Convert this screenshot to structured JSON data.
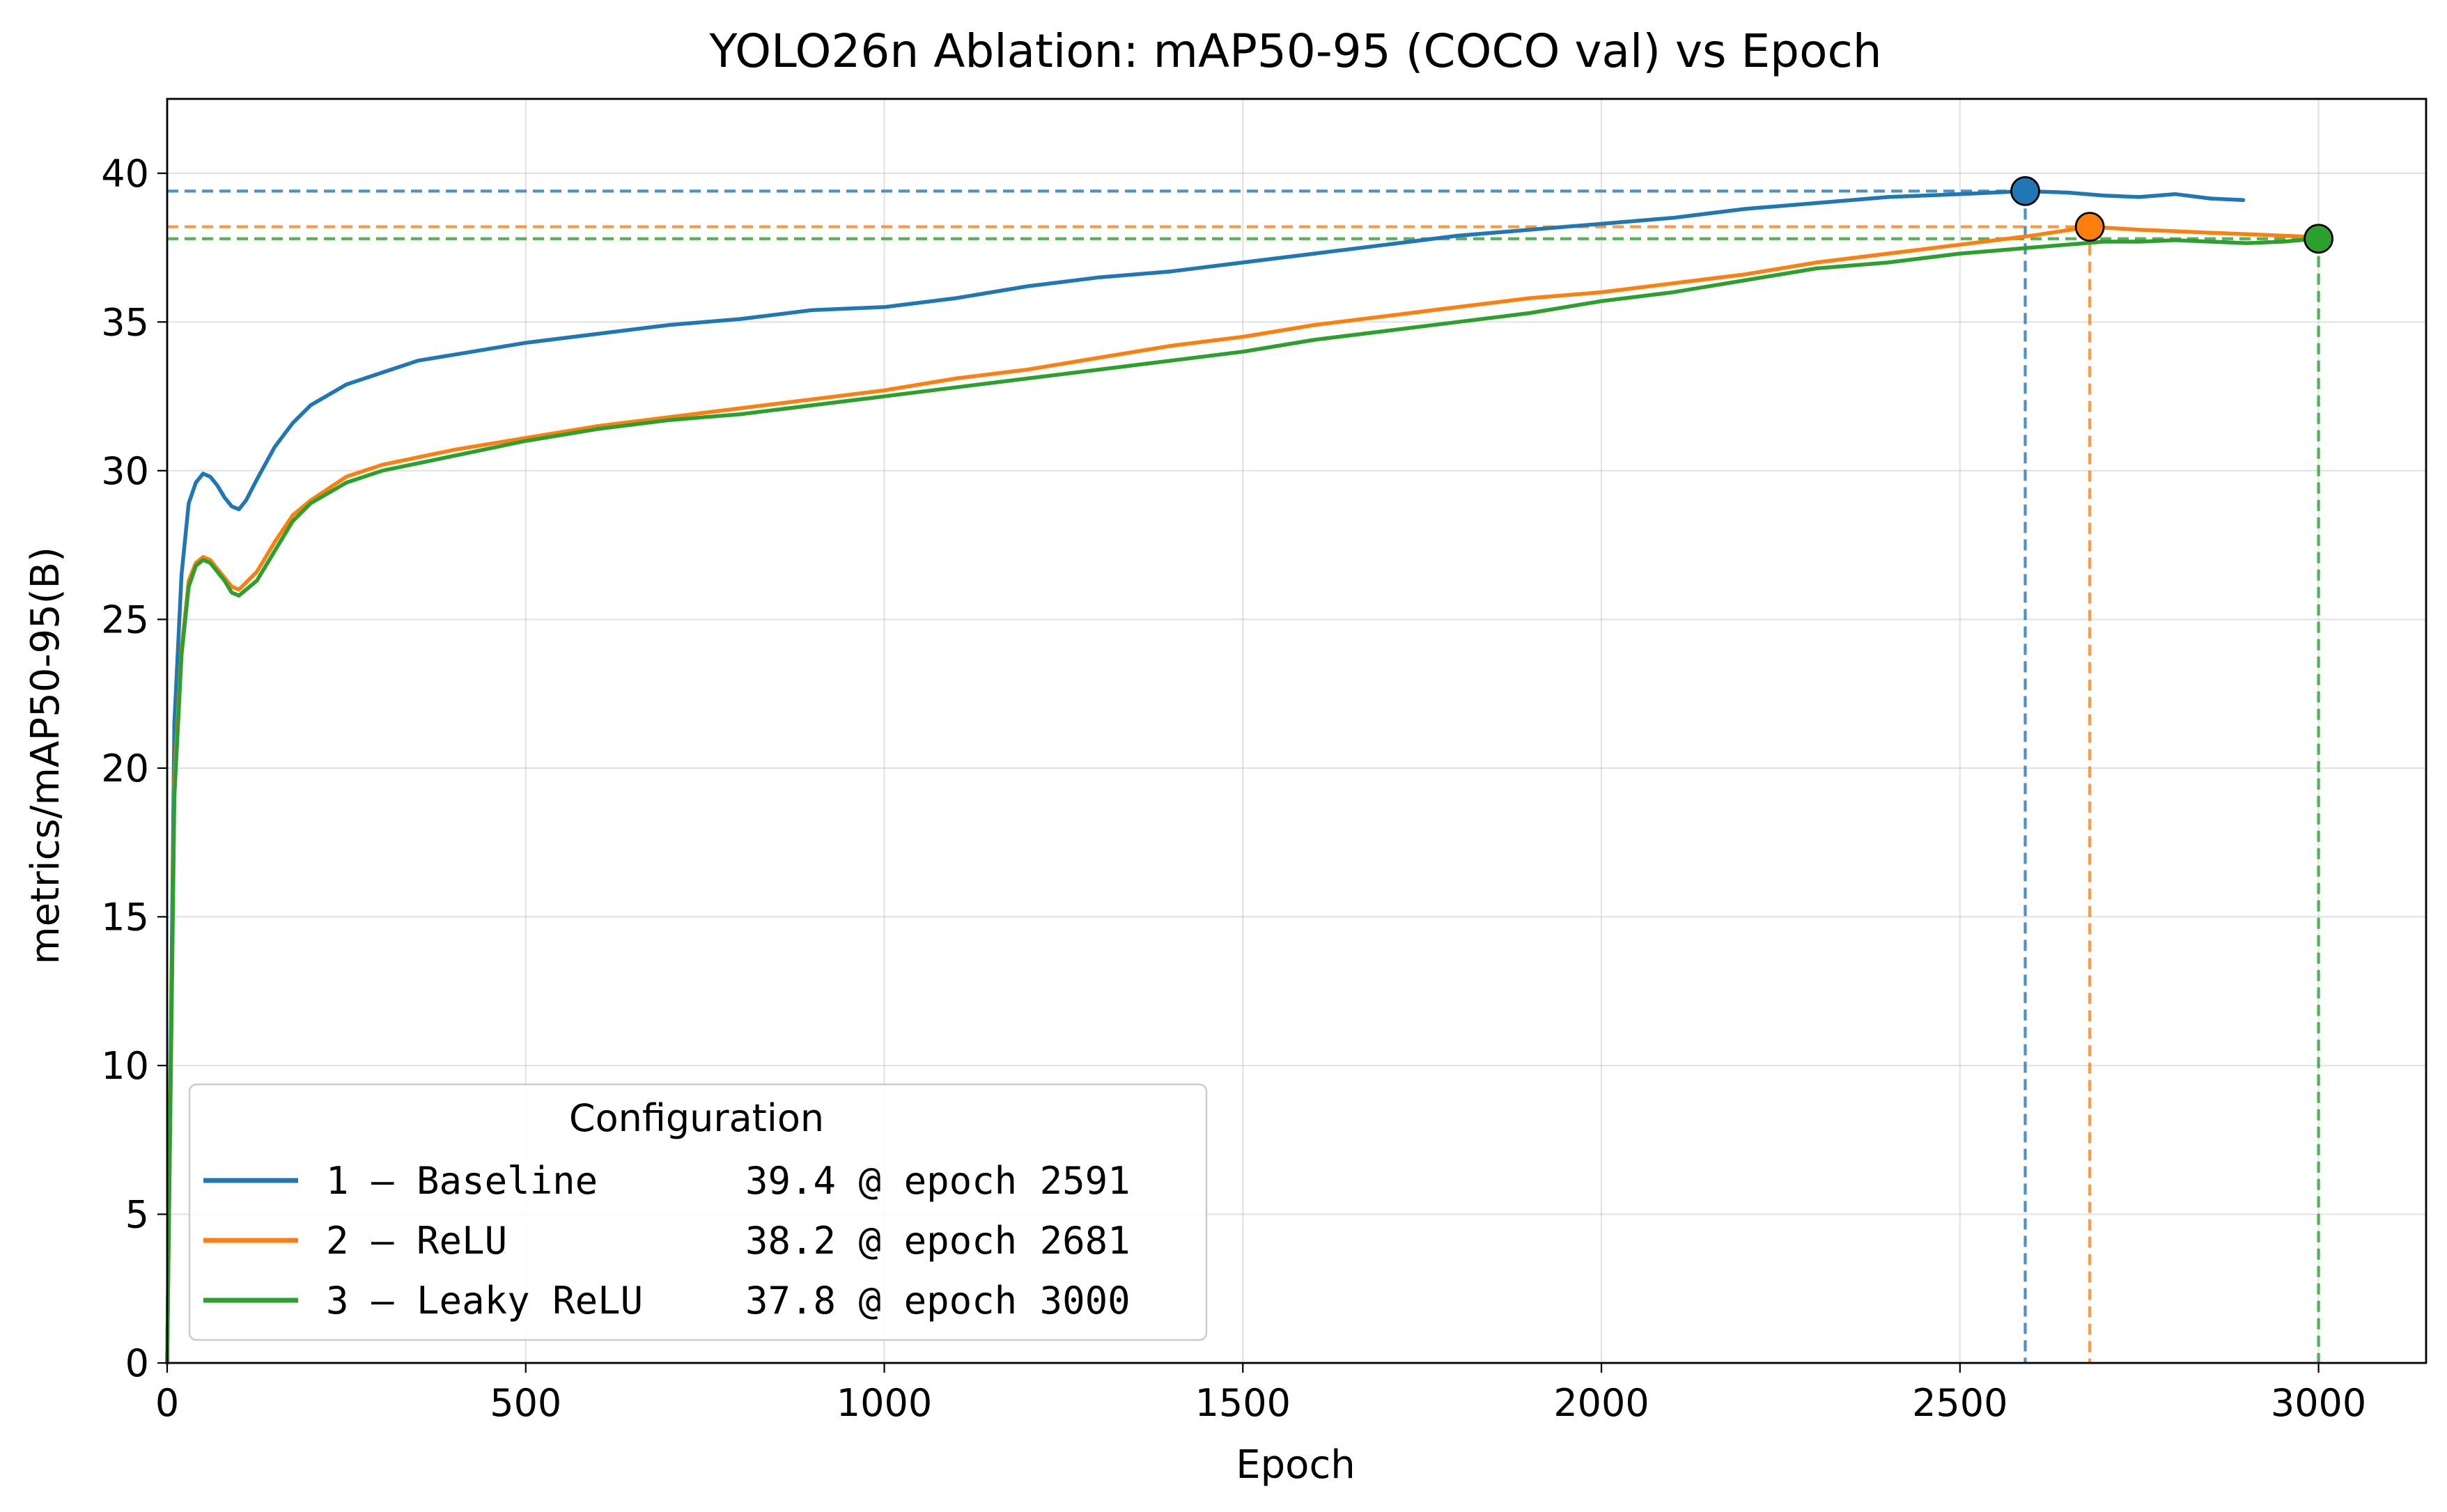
{
  "chart_data": {
    "type": "line",
    "title": "YOLO26n Ablation: mAP50-95 (COCO val) vs Epoch",
    "xlabel": "Epoch",
    "ylabel": "metrics/mAP50-95(B)",
    "xlim": [
      0,
      3150
    ],
    "ylim": [
      0,
      42.5
    ],
    "xticks": [
      0,
      500,
      1000,
      1500,
      2000,
      2500,
      3000
    ],
    "yticks": [
      0,
      5,
      10,
      15,
      20,
      25,
      30,
      35,
      40
    ],
    "grid": true,
    "legend": {
      "title": "Configuration",
      "placement": "bottom-left"
    },
    "series": [
      {
        "name": "1 – Baseline",
        "best_label": "39.4 @ epoch 2591",
        "color": "#1f77b4",
        "best": {
          "epoch": 2591,
          "value": 39.4
        },
        "x": [
          0,
          10,
          20,
          30,
          40,
          50,
          60,
          70,
          80,
          90,
          100,
          110,
          125,
          150,
          175,
          200,
          250,
          300,
          350,
          400,
          500,
          600,
          700,
          800,
          900,
          1000,
          1100,
          1200,
          1300,
          1400,
          1500,
          1600,
          1700,
          1800,
          1900,
          2000,
          2100,
          2200,
          2300,
          2400,
          2500,
          2591,
          2650,
          2700,
          2750,
          2800,
          2850,
          2895
        ],
        "y": [
          0,
          21.5,
          26.5,
          28.9,
          29.6,
          29.9,
          29.8,
          29.5,
          29.1,
          28.8,
          28.7,
          29.0,
          29.7,
          30.8,
          31.6,
          32.2,
          32.9,
          33.3,
          33.7,
          33.9,
          34.3,
          34.6,
          34.9,
          35.1,
          35.4,
          35.5,
          35.8,
          36.2,
          36.5,
          36.7,
          37.0,
          37.3,
          37.6,
          37.9,
          38.1,
          38.3,
          38.5,
          38.8,
          39.0,
          39.2,
          39.3,
          39.4,
          39.35,
          39.25,
          39.2,
          39.3,
          39.15,
          39.1
        ]
      },
      {
        "name": "2 – ReLU",
        "best_label": "38.2 @ epoch 2681",
        "color": "#ff7f0e",
        "best": {
          "epoch": 2681,
          "value": 38.2
        },
        "x": [
          0,
          10,
          20,
          30,
          40,
          50,
          60,
          70,
          80,
          90,
          100,
          125,
          150,
          175,
          200,
          250,
          300,
          400,
          500,
          600,
          700,
          800,
          900,
          1000,
          1100,
          1200,
          1300,
          1400,
          1500,
          1600,
          1700,
          1800,
          1900,
          2000,
          2100,
          2200,
          2300,
          2400,
          2500,
          2600,
          2681,
          2750,
          2800,
          2850,
          2900,
          2950,
          3000
        ],
        "y": [
          0,
          19.5,
          24.0,
          26.3,
          26.9,
          27.1,
          27.0,
          26.7,
          26.4,
          26.1,
          26.0,
          26.6,
          27.6,
          28.5,
          29.0,
          29.8,
          30.2,
          30.7,
          31.1,
          31.5,
          31.8,
          32.1,
          32.4,
          32.7,
          33.1,
          33.4,
          33.8,
          34.2,
          34.5,
          34.9,
          35.2,
          35.5,
          35.8,
          36.0,
          36.3,
          36.6,
          37.0,
          37.3,
          37.6,
          37.9,
          38.2,
          38.1,
          38.05,
          38.0,
          37.95,
          37.9,
          37.85
        ]
      },
      {
        "name": "3 – Leaky ReLU",
        "best_label": "37.8 @ epoch 3000",
        "color": "#2ca02c",
        "best": {
          "epoch": 3000,
          "value": 37.8
        },
        "x": [
          0,
          10,
          20,
          30,
          40,
          50,
          60,
          70,
          80,
          90,
          100,
          125,
          150,
          175,
          200,
          250,
          300,
          400,
          500,
          600,
          700,
          800,
          900,
          1000,
          1100,
          1200,
          1300,
          1400,
          1500,
          1600,
          1700,
          1800,
          1900,
          2000,
          2100,
          2200,
          2300,
          2400,
          2500,
          2600,
          2700,
          2750,
          2800,
          2850,
          2900,
          2950,
          3000
        ],
        "y": [
          0,
          19.0,
          23.8,
          26.1,
          26.8,
          27.0,
          26.9,
          26.6,
          26.3,
          25.9,
          25.8,
          26.3,
          27.3,
          28.3,
          28.9,
          29.6,
          30.0,
          30.5,
          31.0,
          31.4,
          31.7,
          31.9,
          32.2,
          32.5,
          32.8,
          33.1,
          33.4,
          33.7,
          34.0,
          34.4,
          34.7,
          35.0,
          35.3,
          35.7,
          36.0,
          36.4,
          36.8,
          37.0,
          37.3,
          37.5,
          37.7,
          37.7,
          37.75,
          37.7,
          37.65,
          37.7,
          37.8
        ]
      }
    ]
  }
}
